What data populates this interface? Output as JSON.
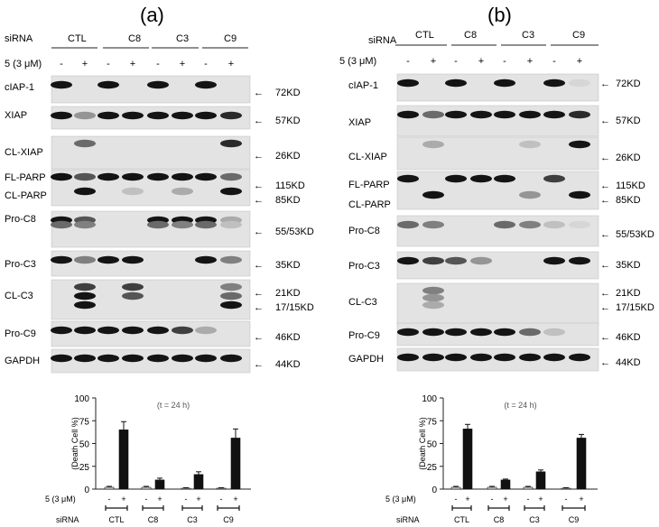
{
  "panels": [
    {
      "letter": "(a)",
      "siRNA_label": "siRNA",
      "groups": [
        "CTL",
        "C8",
        "C3",
        "C9"
      ],
      "treatment_label": "5 (3 μM)",
      "signs": [
        "-",
        "+",
        "-",
        "+",
        "-",
        "+",
        "-",
        "+"
      ]
    },
    {
      "letter": "(b)",
      "siRNA_label": "siRNA",
      "groups": [
        "CTL",
        "C8",
        "C3",
        "C9"
      ],
      "treatment_label": "5 (3 μM)",
      "signs": [
        "-",
        "+",
        "-",
        "+",
        "-",
        "+",
        "-",
        "+"
      ]
    }
  ],
  "blots_a": [
    {
      "label": "cIAP-1",
      "kd": "72KD"
    },
    {
      "label": "XIAP",
      "kd": "57KD"
    },
    {
      "label": "CL-XIAP",
      "kd": "26KD"
    },
    {
      "label": "FL-PARP",
      "kd": "115KD"
    },
    {
      "label": "CL-PARP",
      "kd": "85KD"
    },
    {
      "label": "Pro-C8",
      "kd": "55/53KD"
    },
    {
      "label": "Pro-C3",
      "kd": "35KD"
    },
    {
      "label": "CL-C3",
      "kd": "21KD",
      "kd2": "17/15KD"
    },
    {
      "label": "Pro-C9",
      "kd": "46KD"
    },
    {
      "label": "GAPDH",
      "kd": "44KD"
    }
  ],
  "blots_b": [
    {
      "label": "cIAP-1",
      "kd": "72KD"
    },
    {
      "label": "XIAP",
      "kd": "57KD"
    },
    {
      "label": "CL-XIAP",
      "kd": "26KD"
    },
    {
      "label": "FL-PARP",
      "kd": "115KD"
    },
    {
      "label": "CL-PARP",
      "kd": "85KD"
    },
    {
      "label": "Pro-C8",
      "kd": "55/53KD"
    },
    {
      "label": "Pro-C3",
      "kd": "35KD"
    },
    {
      "label": "CL-C3",
      "kd": "21KD",
      "kd2": "17/15KD"
    },
    {
      "label": "Pro-C9",
      "kd": "46KD"
    },
    {
      "label": "GAPDH",
      "kd": "44KD"
    }
  ],
  "chart_data": [
    {
      "type": "bar",
      "annotation": "(t = 24 h)",
      "ylabel": "(Death Cell %)",
      "ylim": [
        0,
        100
      ],
      "yticks": [
        "0",
        "25",
        "50",
        "75",
        "100"
      ],
      "categories": [
        "CTL -",
        "CTL +",
        "C8 -",
        "C8 +",
        "C3 -",
        "C3 +",
        "C9 -",
        "C9 +"
      ],
      "values": [
        2,
        65,
        2,
        10,
        1,
        16,
        1,
        56
      ],
      "errors": [
        1,
        9,
        1,
        2,
        0.5,
        3,
        0.5,
        10
      ],
      "treatment_label": "5 (3 μM)",
      "signs": [
        "-",
        "+",
        "-",
        "+",
        "-",
        "+",
        "-",
        "+"
      ],
      "siRNA_label": "siRNA",
      "groups": [
        "CTL",
        "C8",
        "C3",
        "C9"
      ]
    },
    {
      "type": "bar",
      "annotation": "(t = 24 h)",
      "ylabel": "(Death Cell %)",
      "ylim": [
        0,
        100
      ],
      "yticks": [
        "0",
        "25",
        "50",
        "75",
        "100"
      ],
      "categories": [
        "CTL -",
        "CTL +",
        "C8 -",
        "C8 +",
        "C3 -",
        "C3 +",
        "C9 -",
        "C9 +"
      ],
      "values": [
        2,
        66,
        2,
        10,
        2,
        19,
        1,
        56
      ],
      "errors": [
        1,
        5,
        1,
        1,
        1,
        2,
        0.5,
        4
      ],
      "treatment_label": "5 (3 μM)",
      "signs": [
        "-",
        "+",
        "-",
        "+",
        "-",
        "+",
        "-",
        "+"
      ],
      "siRNA_label": "siRNA",
      "groups": [
        "CTL",
        "C8",
        "C3",
        "C9"
      ]
    }
  ]
}
